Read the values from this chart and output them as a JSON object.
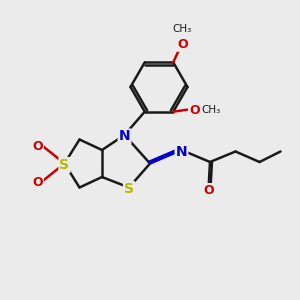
{
  "bg_color": "#ebebeb",
  "bond_color": "#1a1a1a",
  "s_color": "#b8b800",
  "n_color": "#0000cc",
  "o_color": "#cc0000",
  "bond_width": 1.8,
  "font_size": 9,
  "figsize": [
    3.0,
    3.0
  ],
  "dpi": 100,
  "xlim": [
    0,
    10
  ],
  "ylim": [
    0,
    10
  ]
}
